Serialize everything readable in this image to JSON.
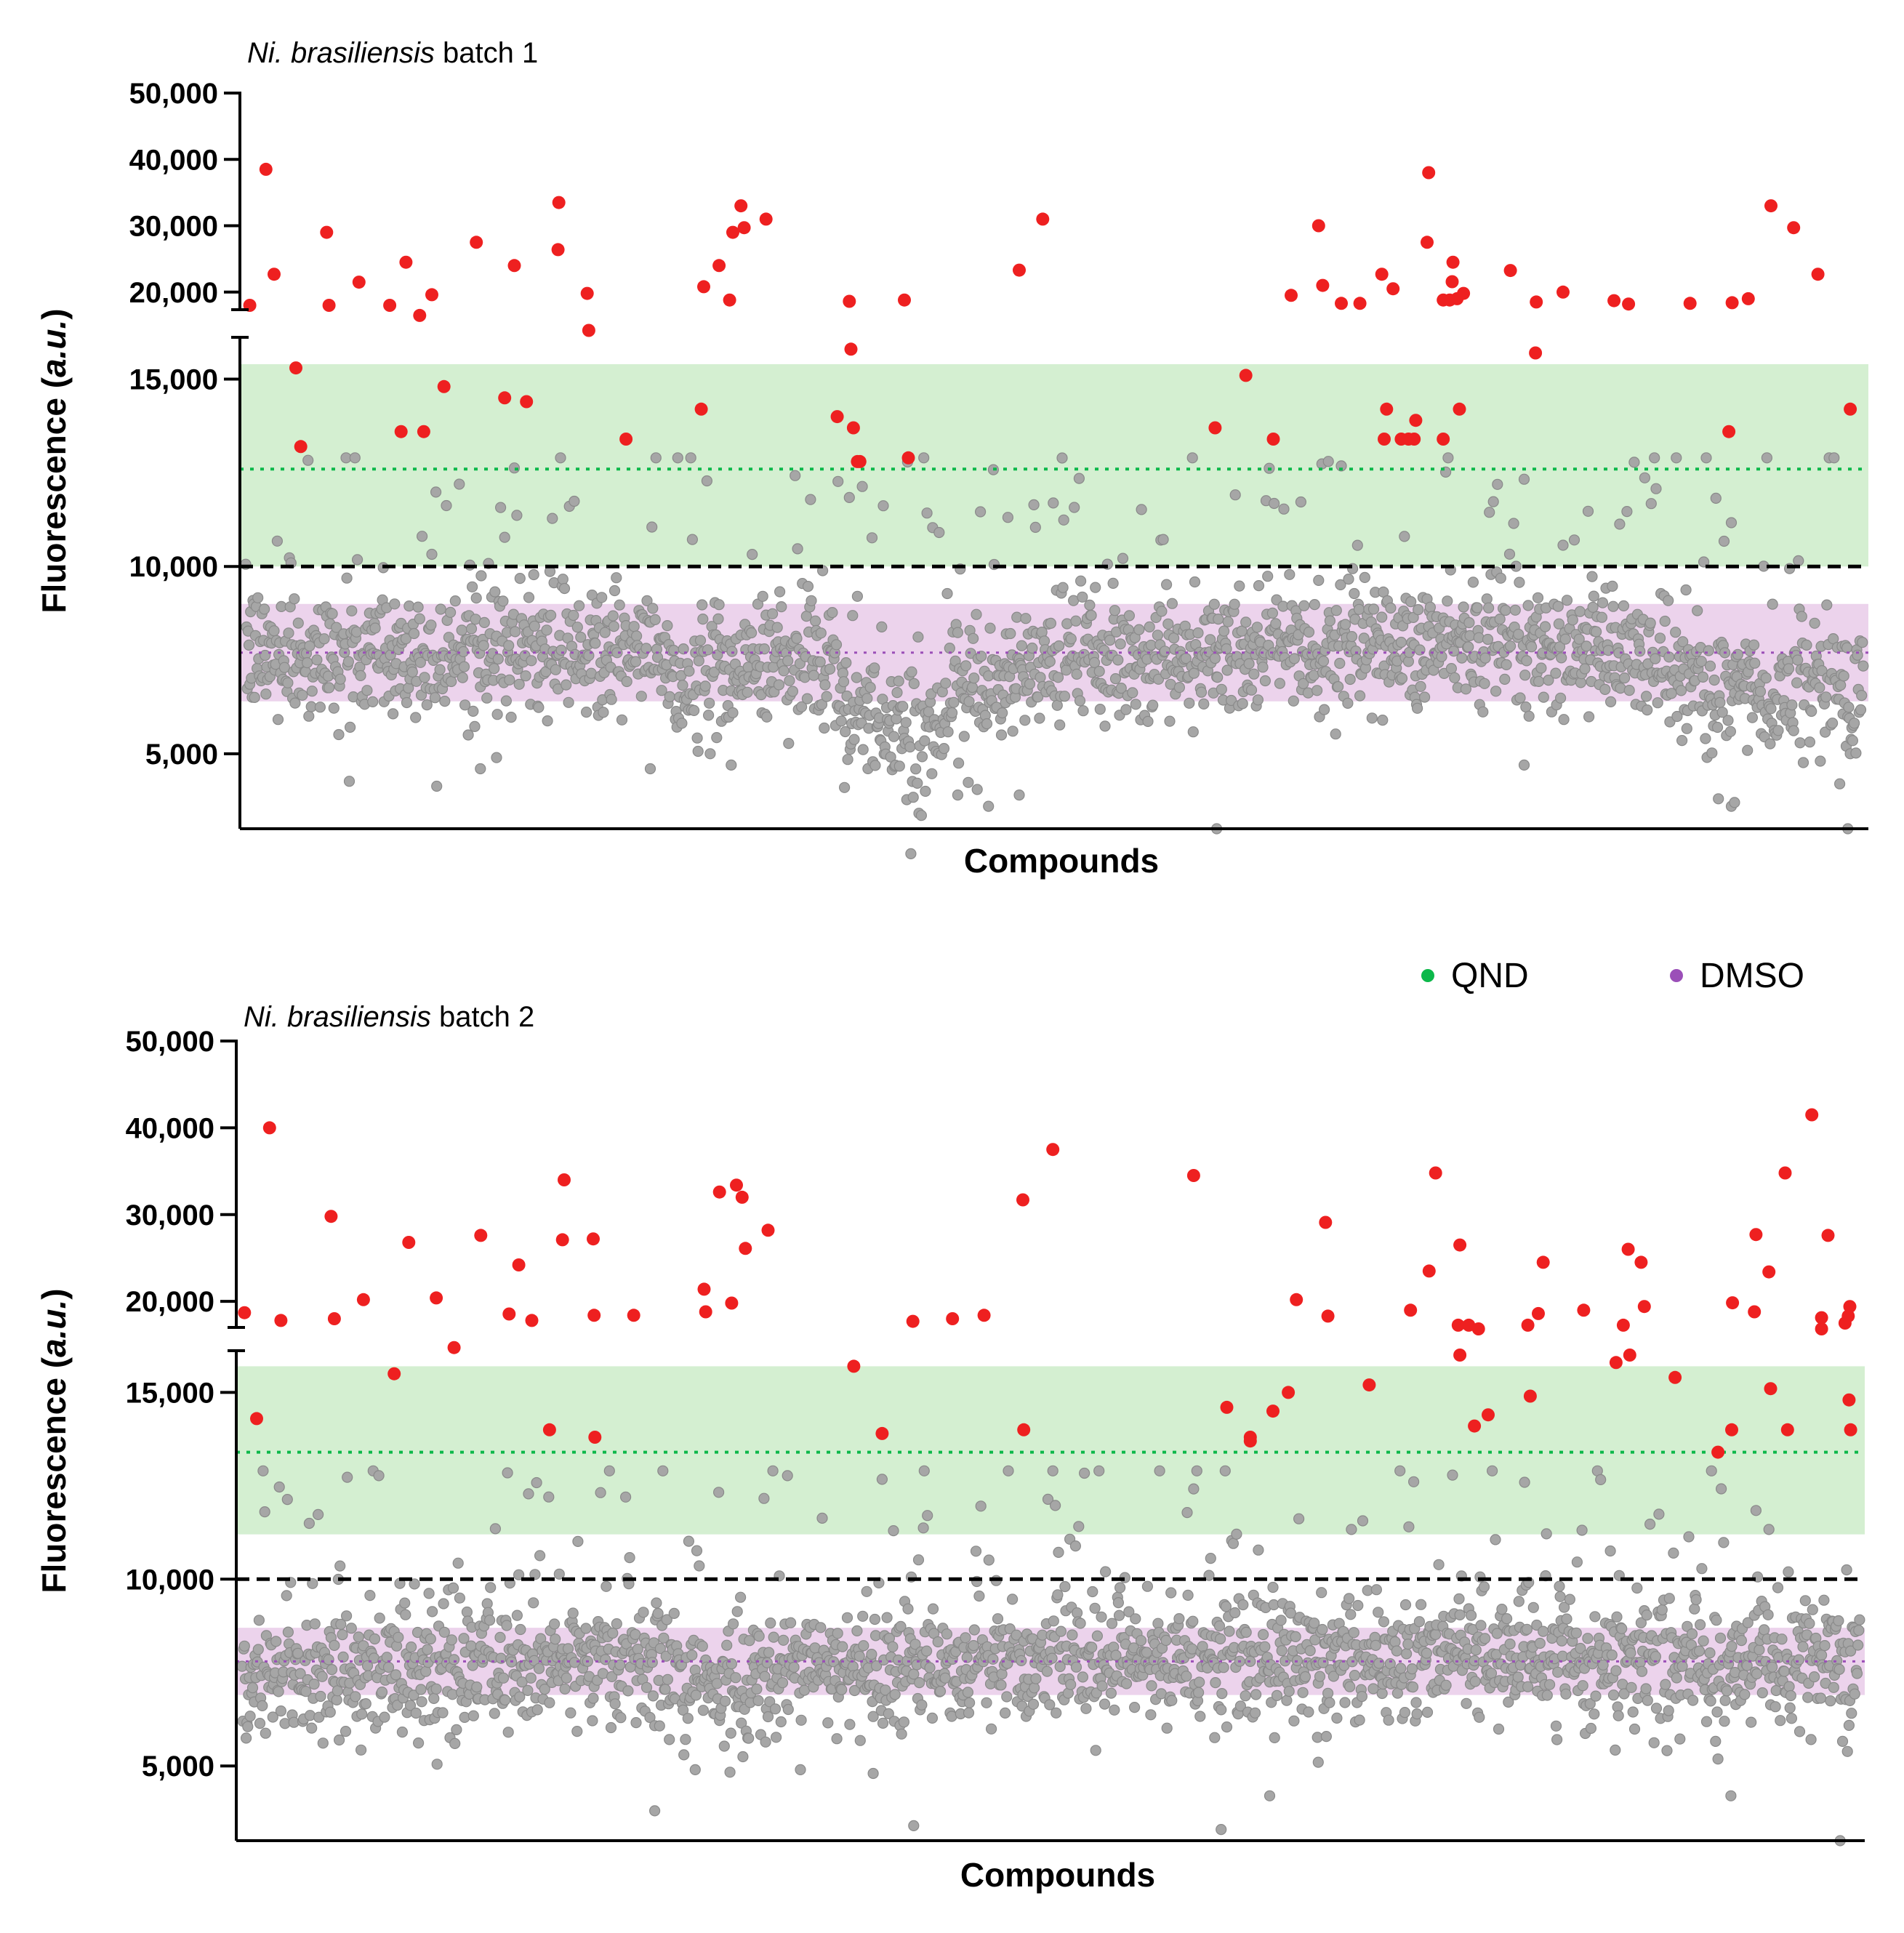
{
  "chart_data": [
    {
      "type": "scatter",
      "title_italic": "Ni. brasiliensis",
      "title_rest": " batch 1",
      "xlabel": "Compounds",
      "ylabel_prefix": "Fluorescence (",
      "ylabel_italic": "a.u.",
      "ylabel_suffix": ")",
      "y_broken_axis": true,
      "ylim_lower": [
        3000,
        16000
      ],
      "ylim_upper": [
        18000,
        50000
      ],
      "yticks": [
        5000,
        10000,
        15000,
        20000,
        30000,
        40000,
        50000
      ],
      "ytick_labels": [
        "5,000",
        "10,000",
        "15,000",
        "20,000",
        "30,000",
        "40,000",
        "50,000"
      ],
      "n_compounds": 2000,
      "hit_threshold": 10000,
      "qnd_band": {
        "mean": 12600,
        "low": 10000,
        "high": 15400
      },
      "dmso_band": {
        "mean": 7700,
        "low": 6400,
        "high": 9000
      },
      "colors": {
        "non_hit": "#a6a6a6",
        "hit": "#ee2020",
        "qnd": "#0cb84a",
        "dmso": "#9b4fb8",
        "qnd_band": "#d4efd1",
        "dmso_band": "#ecd3ec"
      },
      "hits": [
        [
          5,
          18000
        ],
        [
          25,
          38500
        ],
        [
          35,
          17800
        ],
        [
          62,
          15300
        ],
        [
          68,
          13200
        ],
        [
          100,
          29000
        ],
        [
          103,
          18000
        ],
        [
          140,
          21500
        ],
        [
          178,
          18000
        ],
        [
          192,
          13600
        ],
        [
          198,
          24500
        ],
        [
          215,
          16700
        ],
        [
          220,
          13600
        ],
        [
          230,
          19600
        ],
        [
          245,
          14800
        ],
        [
          285,
          27500
        ],
        [
          320,
          14500
        ],
        [
          332,
          24000
        ],
        [
          347,
          14400
        ],
        [
          386,
          26400
        ],
        [
          387,
          33500
        ],
        [
          424,
          16300
        ],
        [
          422,
          19800
        ],
        [
          470,
          13400
        ],
        [
          566,
          20800
        ],
        [
          563,
          14200
        ],
        [
          585,
          24000
        ],
        [
          598,
          18800
        ],
        [
          602,
          29000
        ],
        [
          612,
          33000
        ],
        [
          616,
          29700
        ],
        [
          643,
          31000
        ],
        [
          731,
          14000
        ],
        [
          746,
          18600
        ],
        [
          748,
          15800
        ],
        [
          751,
          13700
        ],
        [
          756,
          12800
        ],
        [
          759,
          12800
        ],
        [
          814,
          18800
        ],
        [
          819,
          12900
        ],
        [
          956,
          23300
        ],
        [
          985,
          31000
        ],
        [
          1198,
          13700
        ],
        [
          1236,
          15100
        ],
        [
          1270,
          13400
        ],
        [
          1292,
          19500
        ],
        [
          1326,
          30000
        ],
        [
          1331,
          21000
        ],
        [
          1354,
          18300
        ],
        [
          1377,
          18300
        ],
        [
          1404,
          17800
        ],
        [
          1407,
          13400
        ],
        [
          1410,
          14200
        ],
        [
          1418,
          20500
        ],
        [
          1428,
          13400
        ],
        [
          1437,
          13400
        ],
        [
          1446,
          13900
        ],
        [
          1444,
          13400
        ],
        [
          1460,
          27500
        ],
        [
          1462,
          38000
        ],
        [
          1480,
          13400
        ],
        [
          1480,
          18800
        ],
        [
          1488,
          18800
        ],
        [
          1491,
          17600
        ],
        [
          1492,
          24500
        ],
        [
          1497,
          19000
        ],
        [
          1500,
          14200
        ],
        [
          1505,
          19800
        ],
        [
          1563,
          17900
        ],
        [
          1594,
          15700
        ],
        [
          1595,
          18500
        ],
        [
          1628,
          20000
        ],
        [
          1691,
          18700
        ],
        [
          1709,
          18200
        ],
        [
          1785,
          18300
        ],
        [
          1833,
          13600
        ],
        [
          1837,
          18400
        ],
        [
          1857,
          19000
        ],
        [
          1885,
          33000
        ],
        [
          1913,
          29700
        ],
        [
          1943,
          17800
        ],
        [
          1983,
          14200
        ]
      ],
      "gray_lows": [
        [
          500,
          4600
        ],
        [
          600,
          4700
        ],
        [
          740,
          4100
        ],
        [
          840,
          4000
        ],
        [
          880,
          3900
        ],
        [
          918,
          3600
        ],
        [
          956,
          3900
        ],
        [
          1200,
          3000
        ],
        [
          1820,
          3800
        ],
        [
          1836,
          3600
        ],
        [
          1840,
          3700
        ],
        [
          1980,
          3000
        ],
        [
          290,
          4600
        ],
        [
          310,
          4900
        ],
        [
          1580,
          4700
        ]
      ]
    },
    {
      "type": "scatter",
      "title_italic": "Ni. brasiliensis",
      "title_rest": " batch 2",
      "xlabel": "Compounds",
      "ylabel_prefix": "Fluorescence (",
      "ylabel_italic": "a.u.",
      "ylabel_suffix": ")",
      "y_broken_axis": true,
      "ylim_lower": [
        3000,
        16000
      ],
      "ylim_upper": [
        17500,
        50000
      ],
      "yticks": [
        5000,
        10000,
        15000,
        20000,
        30000,
        40000,
        50000
      ],
      "ytick_labels": [
        "5,000",
        "10,000",
        "15,000",
        "20,000",
        "30,000",
        "40,000",
        "50,000"
      ],
      "n_compounds": 2000,
      "hit_threshold": 10000,
      "qnd_band": {
        "mean": 13400,
        "low": 11200,
        "high": 15700
      },
      "dmso_band": {
        "mean": 7800,
        "low": 6900,
        "high": 8700
      },
      "colors": {
        "non_hit": "#a6a6a6",
        "hit": "#ee2020",
        "qnd": "#0cb84a",
        "dmso": "#9b4fb8",
        "qnd_band": "#d4efd1",
        "dmso_band": "#ecd3ec"
      },
      "hits": [
        [
          3,
          18700
        ],
        [
          18,
          14300
        ],
        [
          34,
          40000
        ],
        [
          48,
          17800
        ],
        [
          110,
          29800
        ],
        [
          114,
          18000
        ],
        [
          150,
          20200
        ],
        [
          188,
          15500
        ],
        [
          206,
          26800
        ],
        [
          240,
          20400
        ],
        [
          262,
          16200
        ],
        [
          295,
          27600
        ],
        [
          330,
          17100
        ],
        [
          342,
          24200
        ],
        [
          358,
          17800
        ],
        [
          380,
          14000
        ],
        [
          396,
          27100
        ],
        [
          398,
          34000
        ],
        [
          434,
          27200
        ],
        [
          435,
          18400
        ],
        [
          436,
          13800
        ],
        [
          484,
          18400
        ],
        [
          571,
          21400
        ],
        [
          573,
          18800
        ],
        [
          590,
          32600
        ],
        [
          605,
          19800
        ],
        [
          611,
          33400
        ],
        [
          618,
          32000
        ],
        [
          622,
          26100
        ],
        [
          650,
          28200
        ],
        [
          756,
          15700
        ],
        [
          791,
          13900
        ],
        [
          829,
          17700
        ],
        [
          878,
          18000
        ],
        [
          917,
          18400
        ],
        [
          965,
          31700
        ],
        [
          966,
          14000
        ],
        [
          1002,
          37500
        ],
        [
          1176,
          34500
        ],
        [
          1217,
          14600
        ],
        [
          1246,
          13800
        ],
        [
          1246,
          13700
        ],
        [
          1274,
          14500
        ],
        [
          1293,
          15000
        ],
        [
          1303,
          20200
        ],
        [
          1339,
          29100
        ],
        [
          1342,
          18300
        ],
        [
          1393,
          15200
        ],
        [
          1444,
          17200
        ],
        [
          1467,
          23500
        ],
        [
          1475,
          34800
        ],
        [
          1503,
          16800
        ],
        [
          1505,
          16000
        ],
        [
          1505,
          26500
        ],
        [
          1516,
          16800
        ],
        [
          1523,
          14100
        ],
        [
          1528,
          16700
        ],
        [
          1540,
          14400
        ],
        [
          1589,
          16800
        ],
        [
          1592,
          14900
        ],
        [
          1602,
          18600
        ],
        [
          1608,
          24500
        ],
        [
          1658,
          17200
        ],
        [
          1698,
          15800
        ],
        [
          1707,
          16800
        ],
        [
          1713,
          26000
        ],
        [
          1715,
          16000
        ],
        [
          1729,
          24500
        ],
        [
          1733,
          17300
        ],
        [
          1771,
          15400
        ],
        [
          1824,
          13400
        ],
        [
          1841,
          14000
        ],
        [
          1842,
          17400
        ],
        [
          1869,
          18800
        ],
        [
          1871,
          27700
        ],
        [
          1887,
          23400
        ],
        [
          1889,
          15100
        ],
        [
          1907,
          34800
        ],
        [
          1910,
          14000
        ],
        [
          1940,
          41500
        ],
        [
          1952,
          17000
        ],
        [
          1952,
          16700
        ],
        [
          1960,
          27600
        ],
        [
          1981,
          17500
        ],
        [
          1985,
          18300
        ],
        [
          1986,
          14800
        ],
        [
          1987,
          17300
        ],
        [
          1988,
          14000
        ]
      ],
      "gray_lows": [
        [
          510,
          3800
        ],
        [
          830,
          3400
        ],
        [
          1210,
          3300
        ],
        [
          1270,
          4200
        ],
        [
          1840,
          4200
        ],
        [
          1975,
          2800
        ],
        [
          560,
          4900
        ],
        [
          780,
          4800
        ],
        [
          1330,
          5100
        ]
      ]
    }
  ],
  "legend": [
    {
      "label": "QND",
      "color": "#0cb84a"
    },
    {
      "label": "DMSO",
      "color": "#9b4fb8"
    }
  ]
}
